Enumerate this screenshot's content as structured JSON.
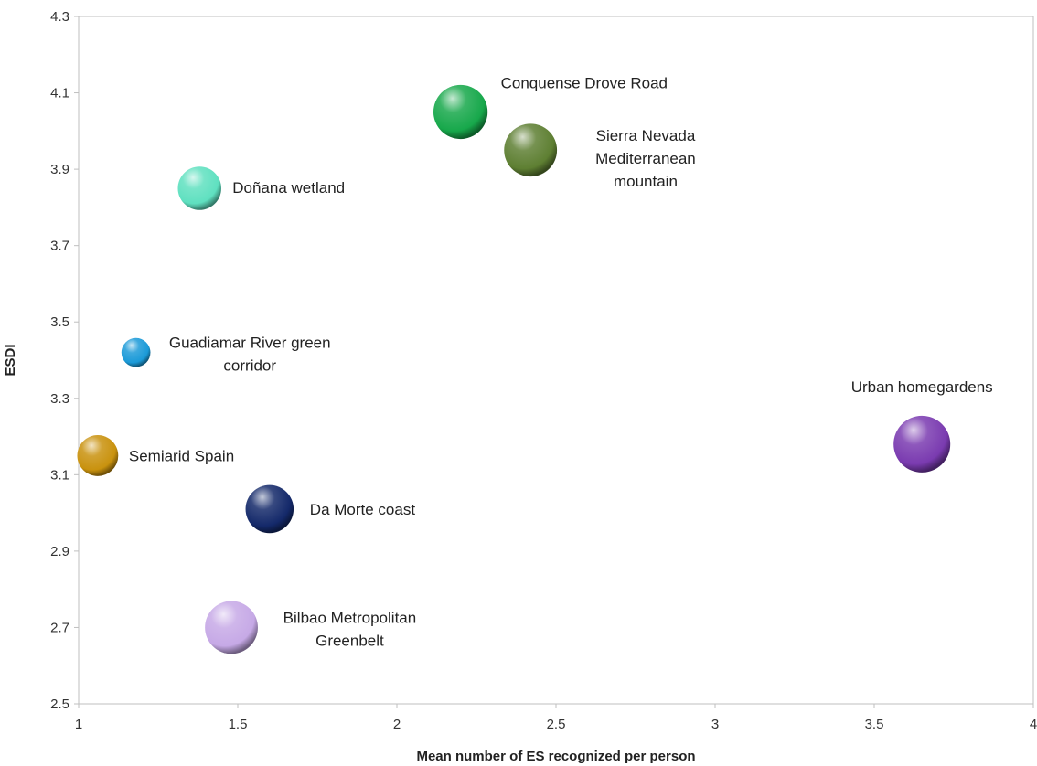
{
  "chart_data": {
    "type": "scatter",
    "title": "",
    "xlabel": "Mean number of ES recognized per person",
    "ylabel": "ESDI",
    "xlim": [
      1,
      4
    ],
    "ylim": [
      2.5,
      4.3
    ],
    "x_ticks": [
      "1",
      "1.5",
      "2",
      "2.5",
      "3",
      "3.5",
      "4"
    ],
    "y_ticks": [
      "2.5",
      "2.7",
      "2.9",
      "3.1",
      "3.3",
      "3.5",
      "3.7",
      "3.9",
      "4.1",
      "4.3"
    ],
    "grid": false,
    "bubble": true,
    "points": [
      {
        "label_lines": [
          "Conquense  Drove Road"
        ],
        "x": 2.2,
        "y": 4.05,
        "size": 4.2,
        "color": "#17a84b"
      },
      {
        "label_lines": [
          "Sierra Nevada",
          "Mediterranean",
          "mountain"
        ],
        "x": 2.42,
        "y": 3.95,
        "size": 4.0,
        "color": "#5e7f32"
      },
      {
        "label_lines": [
          "Doñana wetland"
        ],
        "x": 1.38,
        "y": 3.85,
        "size": 2.7,
        "color": "#5fe0c0"
      },
      {
        "label_lines": [
          "Guadiamar River green",
          "corridor"
        ],
        "x": 1.18,
        "y": 3.42,
        "size": 1.2,
        "color": "#1b9ad8"
      },
      {
        "label_lines": [
          "Urban homegardens"
        ],
        "x": 3.65,
        "y": 3.18,
        "size": 4.6,
        "color": "#7a3bb0"
      },
      {
        "label_lines": [
          "Semiarid Spain"
        ],
        "x": 1.06,
        "y": 3.15,
        "size": 2.4,
        "color": "#c9920e"
      },
      {
        "label_lines": [
          "Da Morte coast"
        ],
        "x": 1.6,
        "y": 3.01,
        "size": 3.3,
        "color": "#14296a"
      },
      {
        "label_lines": [
          "Bilbao Metropolitan",
          "Greenbelt"
        ],
        "x": 1.48,
        "y": 2.7,
        "size": 4.0,
        "color": "#c6a9e6"
      }
    ]
  }
}
